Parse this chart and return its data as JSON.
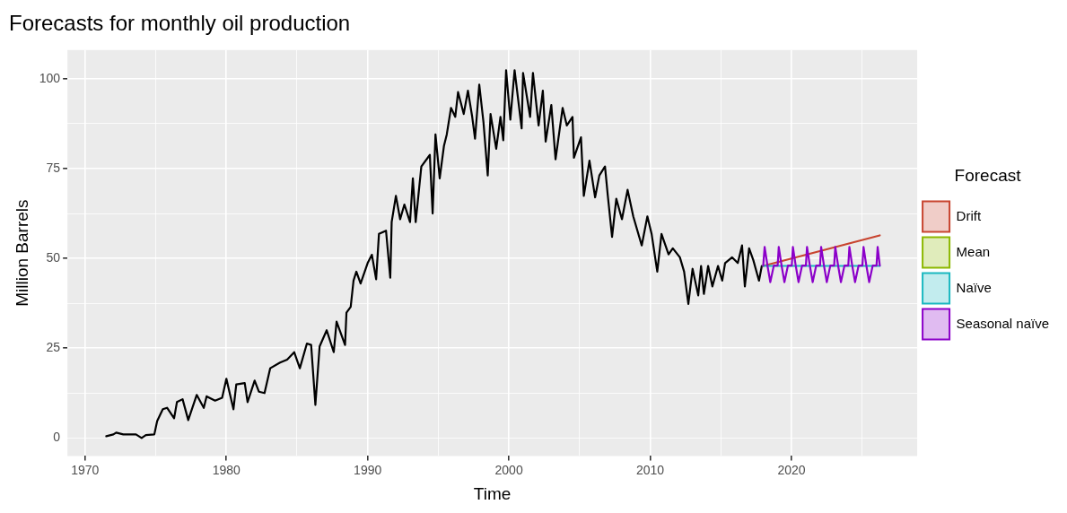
{
  "chart_data": {
    "type": "line",
    "title": "Forecasts for monthly oil production",
    "xlabel": "Time",
    "ylabel": "Million Barrels",
    "legend_title": "Forecast",
    "legend": "right",
    "grid": true,
    "marker": "none",
    "line_style": "solid",
    "xlim": [
      1968.75,
      2028.9
    ],
    "xticks": [
      1970,
      {
        "value": 1975,
        "label": null
      },
      1980,
      {
        "value": 1985,
        "label": null
      },
      1990,
      {
        "value": 1995,
        "label": null
      },
      2000,
      {
        "value": 2005,
        "label": null
      },
      2010,
      {
        "value": 2015,
        "label": null
      },
      2020,
      {
        "value": 2025,
        "label": null
      }
    ],
    "ylim": [
      -5,
      108
    ],
    "yticks": [
      0,
      {
        "value": 12.5,
        "label": null
      },
      25,
      {
        "value": 37.5,
        "label": null
      },
      50,
      {
        "value": 62.5,
        "label": null
      },
      75,
      {
        "value": 87.5,
        "label": null
      },
      100
    ],
    "series": [
      {
        "color": "#000000",
        "x": [
          1971.5,
          1972.0,
          1972.2,
          1972.7,
          1973.6,
          1974.0,
          1974.3,
          1974.9,
          1975.1,
          1975.5,
          1975.8,
          1976.3,
          1976.5,
          1976.9,
          1977.3,
          1977.9,
          1978.4,
          1978.6,
          1979.2,
          1979.7,
          1980.0,
          1980.5,
          1980.7,
          1981.3,
          1981.5,
          1982.0,
          1982.3,
          1982.7,
          1983.1,
          1983.8,
          1984.3,
          1984.8,
          1985.2,
          1985.7,
          1986.0,
          1986.3,
          1986.6,
          1987.1,
          1987.6,
          1987.8,
          1988.4,
          1988.5,
          1988.8,
          1989.0,
          1989.2,
          1989.5,
          1990.0,
          1990.3,
          1990.6,
          1990.8,
          1991.3,
          1991.6,
          1991.7,
          1992.0,
          1992.3,
          1992.6,
          1993.0,
          1993.2,
          1993.4,
          1993.8,
          1994.4,
          1994.6,
          1994.8,
          1995.1,
          1995.4,
          1995.6,
          1995.9,
          1996.2,
          1996.4,
          1996.8,
          1997.1,
          1997.4,
          1997.6,
          1997.9,
          1998.2,
          1998.5,
          1998.7,
          1999.1,
          1999.4,
          1999.6,
          1999.8,
          2000.1,
          2000.4,
          2000.9,
          2001.0,
          2001.5,
          2001.7,
          2002.1,
          2002.4,
          2002.6,
          2003.0,
          2003.3,
          2003.8,
          2004.1,
          2004.5,
          2004.6,
          2005.1,
          2005.3,
          2005.7,
          2006.1,
          2006.4,
          2006.8,
          2007.0,
          2007.3,
          2007.6,
          2008.0,
          2008.4,
          2008.8,
          2009.4,
          2009.8,
          2010.1,
          2010.5,
          2010.8,
          2011.3,
          2011.6,
          2012.1,
          2012.4,
          2012.7,
          2013.0,
          2013.4,
          2013.6,
          2013.8,
          2014.1,
          2014.4,
          2014.8,
          2015.1,
          2015.3,
          2015.8,
          2016.2,
          2016.5,
          2016.7,
          2017.0,
          2017.3,
          2017.7,
          2017.9
        ],
        "values": [
          0.5,
          1,
          1.5,
          1,
          1,
          0,
          0.8,
          1,
          4.7,
          8,
          8.4,
          5.5,
          10,
          10.8,
          5,
          12,
          8.4,
          11.6,
          10.4,
          11.2,
          16.5,
          8,
          14.9,
          15.3,
          10,
          16,
          12.9,
          12.5,
          19.4,
          21,
          21.8,
          23.9,
          19.4,
          26.3,
          25.9,
          9.2,
          25.5,
          30,
          23.9,
          32.4,
          25.9,
          34.9,
          36.5,
          43.8,
          46.3,
          43,
          48.7,
          51,
          44.2,
          56.8,
          57.7,
          44.6,
          60.1,
          67.4,
          60.9,
          65,
          60.1,
          72.3,
          60.1,
          75.6,
          78.8,
          62.5,
          84.5,
          72.3,
          81.3,
          84.5,
          91.9,
          89.4,
          96.3,
          90.2,
          96.7,
          89.4,
          83.3,
          98.4,
          87.8,
          73.1,
          90.2,
          80.5,
          89.4,
          82.9,
          102.4,
          88.6,
          102.4,
          86.2,
          101.6,
          89.4,
          101.6,
          87,
          96.7,
          82.5,
          92.7,
          77.6,
          91.9,
          87,
          89.4,
          78,
          83.7,
          67.4,
          77.2,
          67,
          73.1,
          75.6,
          67.4,
          56,
          66.6,
          60.9,
          69.1,
          61.7,
          53.6,
          61.7,
          56.8,
          46.3,
          56.8,
          51.1,
          52.8,
          50.3,
          46.3,
          37.3,
          47.1,
          39.7,
          47.9,
          40.1,
          47.9,
          42.2,
          47.9,
          43.8,
          48.7,
          50.3,
          48.7,
          53.6,
          42.2,
          52.8,
          49.5,
          43.8,
          47.9
        ]
      },
      {
        "name": "Drift",
        "color": "#c8442f",
        "x": [
          2018.0,
          2026.25
        ],
        "values": [
          47.9,
          56.4
        ]
      },
      {
        "name": "Mean",
        "color": "#8cb800"
      },
      {
        "name": "Naïve",
        "color": "#1ab8c0",
        "x": [
          2018.0,
          2026.25
        ],
        "values": [
          47.9,
          47.9
        ]
      },
      {
        "name": "Seasonal naïve",
        "color": "#8b00c9",
        "x": [
          2018.0,
          2018.1,
          2018.3,
          2018.5,
          2018.75,
          2019.02,
          2019.1,
          2019.3,
          2019.5,
          2019.75,
          2020.02,
          2020.1,
          2020.3,
          2020.5,
          2020.75,
          2021.02,
          2021.1,
          2021.3,
          2021.5,
          2021.75,
          2022.02,
          2022.1,
          2022.3,
          2022.5,
          2022.75,
          2023.02,
          2023.1,
          2023.3,
          2023.5,
          2023.75,
          2024.02,
          2024.1,
          2024.3,
          2024.5,
          2024.75,
          2025.02,
          2025.1,
          2025.3,
          2025.5,
          2025.75,
          2026.02,
          2026.1,
          2026.25
        ],
        "values": [
          48,
          53.2,
          48,
          43.4,
          48,
          48,
          53.2,
          48,
          43.4,
          48,
          48,
          53.2,
          48,
          43.4,
          48,
          48,
          53.2,
          48,
          43.4,
          48,
          48,
          53.2,
          48,
          43.4,
          48,
          48,
          53.2,
          48,
          43.4,
          48,
          48,
          53.2,
          48,
          43.4,
          48,
          48,
          53.2,
          48,
          43.4,
          48,
          48,
          53.2,
          48
        ]
      }
    ]
  }
}
